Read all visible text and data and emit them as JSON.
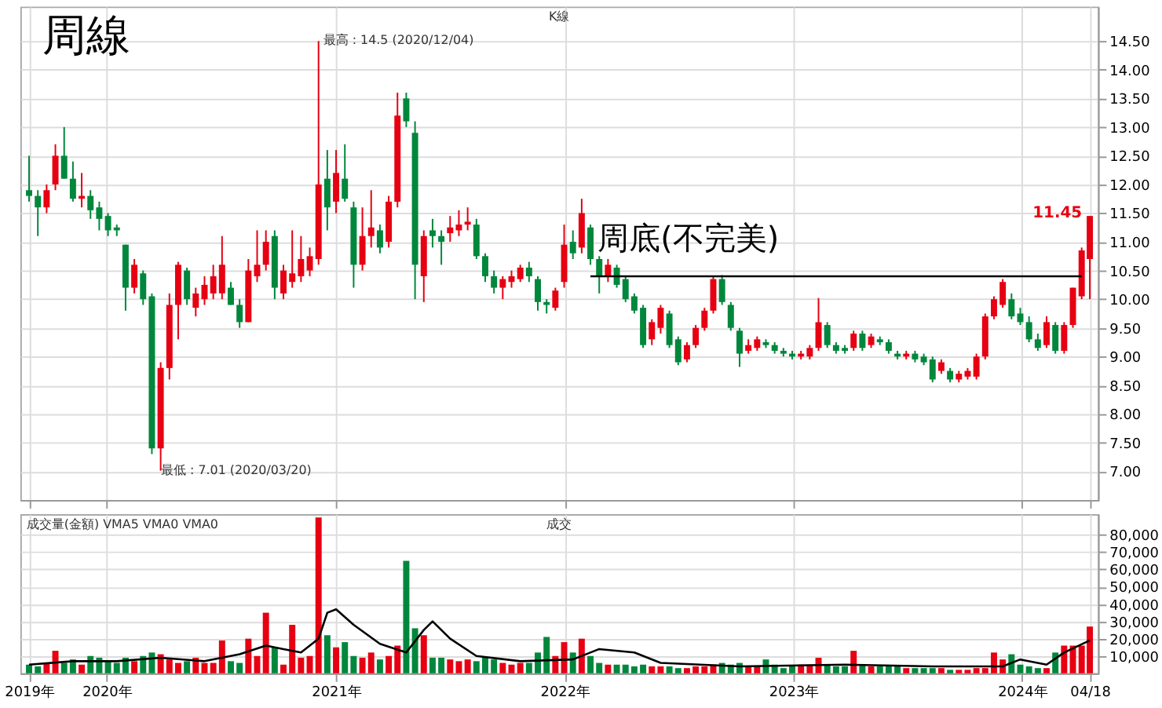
{
  "chart_data": [
    {
      "type": "candlestick",
      "title": "周線",
      "tick_labels": "y",
      "grid": true,
      "xlim": [
        "2019-08-16",
        "2024-05-01"
      ],
      "xticks": [
        {
          "value": "2019-08-30",
          "label": null
        },
        {
          "value": "2020-01-01",
          "label": null
        },
        {
          "value": "2021-01-01",
          "label": null
        },
        {
          "value": "2022-01-01",
          "label": null
        },
        {
          "value": "2023-01-01",
          "label": null
        },
        {
          "value": "2024-01-01",
          "label": null
        },
        {
          "value": "2024-04-18",
          "label": null
        }
      ],
      "ylim": [
        6.5,
        15.1
      ],
      "yticks": [
        {
          "value": 7,
          "label": "7.00"
        },
        {
          "value": 7.5,
          "label": "7.50"
        },
        {
          "value": 8,
          "label": "8.00"
        },
        {
          "value": 8.5,
          "label": "8.50"
        },
        {
          "value": 9,
          "label": "9.00"
        },
        {
          "value": 9.5,
          "label": "9.50"
        },
        {
          "value": 10,
          "label": "10.00"
        },
        {
          "value": 10.5,
          "label": "10.50"
        },
        {
          "value": 11,
          "label": "11.00"
        },
        {
          "value": 11.5,
          "label": "11.50"
        },
        {
          "value": 12,
          "label": "12.00"
        },
        {
          "value": 12.5,
          "label": "12.50"
        },
        {
          "value": 13,
          "label": "13.00"
        },
        {
          "value": 13.5,
          "label": "13.50"
        },
        {
          "value": 14,
          "label": "14.00"
        },
        {
          "value": 14.5,
          "label": "14.50"
        }
      ],
      "x": [
        "2019-08-30",
        "2019-09-13",
        "2019-09-27",
        "2019-10-11",
        "2019-10-25",
        "2019-11-08",
        "2019-11-22",
        "2019-12-06",
        "2019-12-20",
        "2020-01-03",
        "2020-01-17",
        "2020-01-31",
        "2020-02-14",
        "2020-02-28",
        "2020-03-13",
        "2020-03-27",
        "2020-04-10",
        "2020-04-24",
        "2020-05-08",
        "2020-05-22",
        "2020-06-05",
        "2020-06-19",
        "2020-07-03",
        "2020-07-17",
        "2020-07-31",
        "2020-08-14",
        "2020-08-28",
        "2020-09-11",
        "2020-09-25",
        "2020-10-09",
        "2020-10-23",
        "2020-11-06",
        "2020-11-20",
        "2020-12-04",
        "2020-12-18",
        "2021-01-01",
        "2021-01-15",
        "2021-01-29",
        "2021-02-12",
        "2021-02-26",
        "2021-03-12",
        "2021-03-26",
        "2021-04-09",
        "2021-04-23",
        "2021-05-07",
        "2021-05-21",
        "2021-06-04",
        "2021-06-18",
        "2021-07-02",
        "2021-07-16",
        "2021-07-30",
        "2021-08-13",
        "2021-08-27",
        "2021-09-10",
        "2021-09-24",
        "2021-10-08",
        "2021-10-22",
        "2021-11-05",
        "2021-11-19",
        "2021-12-03",
        "2021-12-17",
        "2021-12-31",
        "2022-01-14",
        "2022-01-28",
        "2022-02-11",
        "2022-02-25",
        "2022-03-11",
        "2022-03-25",
        "2022-04-08",
        "2022-04-22",
        "2022-05-06",
        "2022-05-20",
        "2022-06-03",
        "2022-06-17",
        "2022-07-01",
        "2022-07-15",
        "2022-07-29",
        "2022-08-12",
        "2022-08-26",
        "2022-09-09",
        "2022-09-23",
        "2022-10-07",
        "2022-10-21",
        "2022-11-04",
        "2022-11-18",
        "2022-12-02",
        "2022-12-16",
        "2022-12-30",
        "2023-01-13",
        "2023-01-27",
        "2023-02-10",
        "2023-02-24",
        "2023-03-10",
        "2023-03-24",
        "2023-04-07",
        "2023-04-21",
        "2023-05-05",
        "2023-05-19",
        "2023-06-02",
        "2023-06-16",
        "2023-06-30",
        "2023-07-14",
        "2023-07-28",
        "2023-08-11",
        "2023-08-25",
        "2023-09-08",
        "2023-09-22",
        "2023-10-06",
        "2023-10-20",
        "2023-11-03",
        "2023-11-17",
        "2023-12-01",
        "2023-12-15",
        "2023-12-29",
        "2024-01-12",
        "2024-01-26",
        "2024-02-09",
        "2024-02-23",
        "2024-03-08",
        "2024-03-22",
        "2024-04-05",
        "2024-04-18"
      ],
      "ohlc": [
        [
          11.9,
          12.5,
          11.7,
          11.8
        ],
        [
          11.8,
          11.9,
          11.1,
          11.6
        ],
        [
          11.6,
          12.0,
          11.5,
          11.9
        ],
        [
          12.0,
          12.7,
          11.9,
          12.5
        ],
        [
          12.5,
          13.0,
          12.1,
          12.1
        ],
        [
          12.1,
          12.4,
          11.7,
          11.75
        ],
        [
          11.75,
          12.2,
          11.6,
          11.8
        ],
        [
          11.8,
          11.9,
          11.4,
          11.55
        ],
        [
          11.6,
          11.7,
          11.2,
          11.4
        ],
        [
          11.45,
          11.5,
          11.1,
          11.2
        ],
        [
          11.25,
          11.3,
          11.1,
          11.2
        ],
        [
          10.95,
          10.95,
          9.8,
          10.2
        ],
        [
          10.2,
          10.7,
          10.1,
          10.6
        ],
        [
          10.45,
          10.5,
          9.9,
          10.0
        ],
        [
          10.05,
          10.1,
          7.3,
          7.4
        ],
        [
          7.4,
          8.9,
          7.01,
          8.8
        ],
        [
          8.8,
          10.1,
          8.6,
          9.9
        ],
        [
          9.9,
          10.65,
          9.3,
          10.6
        ],
        [
          10.5,
          10.55,
          9.9,
          10.0
        ],
        [
          9.85,
          10.2,
          9.7,
          10.1
        ],
        [
          10.0,
          10.4,
          9.9,
          10.25
        ],
        [
          10.1,
          10.6,
          10.0,
          10.4
        ],
        [
          10.1,
          11.1,
          10.0,
          10.6
        ],
        [
          10.2,
          10.3,
          9.9,
          9.9
        ],
        [
          9.9,
          10.0,
          9.5,
          9.6
        ],
        [
          9.6,
          10.7,
          9.6,
          10.5
        ],
        [
          10.4,
          11.2,
          10.3,
          10.6
        ],
        [
          10.6,
          11.2,
          10.5,
          11.0
        ],
        [
          11.1,
          11.2,
          10.0,
          10.2
        ],
        [
          10.1,
          10.6,
          10.0,
          10.5
        ],
        [
          10.3,
          11.2,
          10.2,
          10.45
        ],
        [
          10.4,
          11.1,
          10.3,
          10.7
        ],
        [
          10.5,
          10.9,
          10.4,
          10.75
        ],
        [
          10.7,
          14.5,
          10.6,
          12.0
        ],
        [
          12.1,
          12.6,
          11.2,
          11.6
        ],
        [
          11.7,
          12.6,
          11.5,
          12.2
        ],
        [
          12.1,
          12.7,
          11.7,
          11.75
        ],
        [
          11.6,
          11.7,
          10.2,
          10.6
        ],
        [
          10.6,
          11.6,
          10.5,
          11.1
        ],
        [
          11.1,
          11.9,
          10.9,
          11.25
        ],
        [
          11.2,
          11.3,
          10.8,
          10.9
        ],
        [
          11.0,
          11.8,
          10.9,
          11.7
        ],
        [
          11.7,
          13.6,
          11.6,
          13.2
        ],
        [
          13.5,
          13.6,
          13.0,
          13.1
        ],
        [
          12.9,
          13.1,
          10.0,
          10.6
        ],
        [
          10.4,
          11.2,
          9.95,
          11.1
        ],
        [
          11.2,
          11.4,
          10.9,
          11.1
        ],
        [
          11.1,
          11.2,
          10.6,
          11.0
        ],
        [
          11.15,
          11.45,
          11.0,
          11.25
        ],
        [
          11.2,
          11.55,
          11.1,
          11.3
        ],
        [
          11.3,
          11.6,
          11.2,
          11.35
        ],
        [
          11.3,
          11.4,
          10.7,
          10.75
        ],
        [
          10.75,
          10.8,
          10.3,
          10.4
        ],
        [
          10.4,
          10.5,
          10.1,
          10.2
        ],
        [
          10.2,
          10.4,
          10.0,
          10.35
        ],
        [
          10.3,
          10.5,
          10.2,
          10.4
        ],
        [
          10.35,
          10.6,
          10.3,
          10.55
        ],
        [
          10.55,
          10.65,
          10.3,
          10.4
        ],
        [
          10.35,
          10.4,
          9.8,
          9.95
        ],
        [
          9.95,
          10.0,
          9.75,
          9.9
        ],
        [
          9.85,
          10.2,
          9.8,
          10.15
        ],
        [
          10.3,
          11.3,
          10.2,
          10.95
        ],
        [
          11.0,
          11.2,
          10.7,
          10.8
        ],
        [
          10.9,
          11.75,
          10.8,
          11.5
        ],
        [
          11.25,
          11.3,
          10.6,
          10.7
        ],
        [
          10.7,
          10.75,
          10.1,
          10.4
        ],
        [
          10.4,
          10.7,
          10.3,
          10.6
        ],
        [
          10.55,
          10.6,
          10.2,
          10.25
        ],
        [
          10.35,
          10.4,
          9.95,
          10.0
        ],
        [
          10.05,
          10.1,
          9.75,
          9.8
        ],
        [
          9.85,
          9.9,
          9.15,
          9.2
        ],
        [
          9.3,
          9.65,
          9.2,
          9.6
        ],
        [
          9.5,
          9.9,
          9.4,
          9.85
        ],
        [
          9.75,
          9.8,
          9.15,
          9.2
        ],
        [
          9.3,
          9.35,
          8.85,
          8.9
        ],
        [
          8.95,
          9.25,
          8.9,
          9.2
        ],
        [
          9.2,
          9.55,
          9.15,
          9.5
        ],
        [
          9.5,
          9.85,
          9.45,
          9.8
        ],
        [
          9.8,
          10.4,
          9.75,
          10.35
        ],
        [
          10.35,
          10.42,
          9.9,
          9.95
        ],
        [
          9.9,
          9.95,
          9.45,
          9.5
        ],
        [
          9.45,
          9.5,
          8.82,
          9.05
        ],
        [
          9.1,
          9.3,
          9.05,
          9.2
        ],
        [
          9.15,
          9.35,
          9.1,
          9.3
        ],
        [
          9.25,
          9.3,
          9.15,
          9.2
        ],
        [
          9.2,
          9.25,
          9.05,
          9.1
        ],
        [
          9.1,
          9.15,
          9.0,
          9.05
        ],
        [
          9.05,
          9.1,
          8.95,
          9.0
        ],
        [
          9.0,
          9.1,
          8.95,
          9.05
        ],
        [
          9.0,
          9.2,
          8.95,
          9.15
        ],
        [
          9.15,
          10.02,
          9.1,
          9.6
        ],
        [
          9.55,
          9.6,
          9.15,
          9.2
        ],
        [
          9.2,
          9.25,
          9.05,
          9.1
        ],
        [
          9.15,
          9.2,
          9.05,
          9.1
        ],
        [
          9.15,
          9.45,
          9.1,
          9.4
        ],
        [
          9.4,
          9.45,
          9.1,
          9.15
        ],
        [
          9.2,
          9.4,
          9.15,
          9.35
        ],
        [
          9.3,
          9.35,
          9.2,
          9.25
        ],
        [
          9.25,
          9.3,
          9.05,
          9.1
        ],
        [
          9.05,
          9.1,
          8.95,
          9.0
        ],
        [
          9.0,
          9.1,
          8.95,
          9.05
        ],
        [
          9.05,
          9.1,
          8.9,
          8.95
        ],
        [
          9.0,
          9.05,
          8.85,
          8.9
        ],
        [
          8.95,
          9.0,
          8.55,
          8.6
        ],
        [
          8.75,
          8.95,
          8.7,
          8.9
        ],
        [
          8.75,
          8.8,
          8.55,
          8.6
        ],
        [
          8.6,
          8.75,
          8.55,
          8.7
        ],
        [
          8.65,
          8.8,
          8.6,
          8.75
        ],
        [
          8.65,
          9.05,
          8.6,
          9.0
        ],
        [
          9.0,
          9.75,
          8.95,
          9.7
        ],
        [
          9.7,
          10.05,
          9.65,
          10.0
        ],
        [
          9.9,
          10.35,
          9.85,
          10.3
        ],
        [
          10.0,
          10.1,
          9.65,
          9.7
        ],
        [
          9.75,
          9.85,
          9.55,
          9.6
        ],
        [
          9.6,
          9.7,
          9.25,
          9.3
        ],
        [
          9.3,
          9.4,
          9.1,
          9.15
        ],
        [
          9.2,
          9.7,
          9.15,
          9.6
        ],
        [
          9.55,
          9.6,
          9.05,
          9.1
        ],
        [
          9.1,
          9.6,
          9.05,
          9.55
        ],
        [
          9.55,
          10.2,
          9.5,
          10.2
        ],
        [
          10.05,
          10.9,
          10.0,
          10.85
        ],
        [
          10.7,
          11.45,
          10.0,
          11.45
        ]
      ],
      "colors": [
        "#00873c",
        "#00873c",
        "#e60012",
        "#e60012",
        "#00873c",
        "#00873c",
        "#e60012",
        "#00873c",
        "#00873c",
        "#00873c",
        "#00873c",
        "#00873c",
        "#e60012",
        "#00873c",
        "#00873c",
        "#e60012",
        "#e60012",
        "#e60012",
        "#00873c",
        "#e60012",
        "#e60012",
        "#e60012",
        "#e60012",
        "#00873c",
        "#00873c",
        "#e60012",
        "#e60012",
        "#e60012",
        "#00873c",
        "#e60012",
        "#e60012",
        "#e60012",
        "#e60012",
        "#e60012",
        "#00873c",
        "#e60012",
        "#00873c",
        "#00873c",
        "#e60012",
        "#e60012",
        "#00873c",
        "#e60012",
        "#e60012",
        "#00873c",
        "#00873c",
        "#e60012",
        "#00873c",
        "#00873c",
        "#e60012",
        "#e60012",
        "#e60012",
        "#00873c",
        "#00873c",
        "#00873c",
        "#e60012",
        "#e60012",
        "#e60012",
        "#00873c",
        "#00873c",
        "#00873c",
        "#e60012",
        "#e60012",
        "#00873c",
        "#e60012",
        "#00873c",
        "#00873c",
        "#e60012",
        "#00873c",
        "#00873c",
        "#00873c",
        "#00873c",
        "#e60012",
        "#e60012",
        "#00873c",
        "#00873c",
        "#e60012",
        "#e60012",
        "#e60012",
        "#e60012",
        "#00873c",
        "#00873c",
        "#00873c",
        "#e60012",
        "#e60012",
        "#00873c",
        "#00873c",
        "#00873c",
        "#00873c",
        "#e60012",
        "#e60012",
        "#e60012",
        "#00873c",
        "#00873c",
        "#00873c",
        "#e60012",
        "#00873c",
        "#e60012",
        "#00873c",
        "#00873c",
        "#00873c",
        "#e60012",
        "#00873c",
        "#00873c",
        "#00873c",
        "#e60012",
        "#00873c",
        "#e60012",
        "#e60012",
        "#e60012",
        "#e60012",
        "#e60012",
        "#e60012",
        "#00873c",
        "#00873c",
        "#00873c",
        "#00873c",
        "#e60012",
        "#00873c",
        "#e60012",
        "#e60012",
        "#e60012",
        "#e60012"
      ],
      "series": [
        {
          "type": "line",
          "color": "#000000",
          "x": [
            "2022-02-11",
            "2024-04-05"
          ],
          "values": [
            10.4,
            10.4
          ]
        }
      ],
      "annotations": [
        "K線",
        "周底(不完美)",
        {
          "text": "最高 : 14.5 (2020/12/04)",
          "x": "2020-12-04",
          "y": 14.5
        },
        {
          "text": "最低 : 7.01 (2020/03/20)",
          "x": "2020-03-20",
          "y": 7.01
        },
        {
          "text": "11.45",
          "x": "2024-04-18",
          "y": 11.45
        }
      ]
    },
    {
      "type": "bar",
      "grid": true,
      "xlim": [
        "2019-08-16",
        "2024-05-01"
      ],
      "xticks": [
        {
          "value": "2019-08-30",
          "label": "2019年"
        },
        {
          "value": "2020-01-01",
          "label": "2020年"
        },
        {
          "value": "2021-01-01",
          "label": "2021年"
        },
        {
          "value": "2022-01-01",
          "label": "2022年"
        },
        {
          "value": "2023-01-01",
          "label": "2023年"
        },
        {
          "value": "2024-01-01",
          "label": "2024年"
        },
        {
          "value": "2024-04-18",
          "label": "04/18"
        }
      ],
      "ylim": [
        0,
        92000
      ],
      "yticks": [
        {
          "value": 10000,
          "label": "10,000"
        },
        {
          "value": 20000,
          "label": "20,000"
        },
        {
          "value": 30000,
          "label": "30,000"
        },
        {
          "value": 40000,
          "label": "40,000"
        },
        {
          "value": 50000,
          "label": "50,000"
        },
        {
          "value": 60000,
          "label": "60,000"
        },
        {
          "value": 70000,
          "label": "70,000"
        },
        {
          "value": 80000,
          "label": "80,000"
        }
      ],
      "x": [
        "2019-08-30",
        "2019-09-13",
        "2019-09-27",
        "2019-10-11",
        "2019-10-25",
        "2019-11-08",
        "2019-11-22",
        "2019-12-06",
        "2019-12-20",
        "2020-01-03",
        "2020-01-17",
        "2020-01-31",
        "2020-02-14",
        "2020-02-28",
        "2020-03-13",
        "2020-03-27",
        "2020-04-10",
        "2020-04-24",
        "2020-05-08",
        "2020-05-22",
        "2020-06-05",
        "2020-06-19",
        "2020-07-03",
        "2020-07-17",
        "2020-07-31",
        "2020-08-14",
        "2020-08-28",
        "2020-09-11",
        "2020-09-25",
        "2020-10-09",
        "2020-10-23",
        "2020-11-06",
        "2020-11-20",
        "2020-12-04",
        "2020-12-18",
        "2021-01-01",
        "2021-01-15",
        "2021-01-29",
        "2021-02-12",
        "2021-02-26",
        "2021-03-12",
        "2021-03-26",
        "2021-04-09",
        "2021-04-23",
        "2021-05-07",
        "2021-05-21",
        "2021-06-04",
        "2021-06-18",
        "2021-07-02",
        "2021-07-16",
        "2021-07-30",
        "2021-08-13",
        "2021-08-27",
        "2021-09-10",
        "2021-09-24",
        "2021-10-08",
        "2021-10-22",
        "2021-11-05",
        "2021-11-19",
        "2021-12-03",
        "2021-12-17",
        "2021-12-31",
        "2022-01-14",
        "2022-01-28",
        "2022-02-11",
        "2022-02-25",
        "2022-03-11",
        "2022-03-25",
        "2022-04-08",
        "2022-04-22",
        "2022-05-06",
        "2022-05-20",
        "2022-06-03",
        "2022-06-17",
        "2022-07-01",
        "2022-07-15",
        "2022-07-29",
        "2022-08-12",
        "2022-08-26",
        "2022-09-09",
        "2022-09-23",
        "2022-10-07",
        "2022-10-21",
        "2022-11-04",
        "2022-11-18",
        "2022-12-02",
        "2022-12-16",
        "2022-12-30",
        "2023-01-13",
        "2023-01-27",
        "2023-02-10",
        "2023-02-24",
        "2023-03-10",
        "2023-03-24",
        "2023-04-07",
        "2023-04-21",
        "2023-05-05",
        "2023-05-19",
        "2023-06-02",
        "2023-06-16",
        "2023-06-30",
        "2023-07-14",
        "2023-07-28",
        "2023-08-11",
        "2023-08-25",
        "2023-09-08",
        "2023-09-22",
        "2023-10-06",
        "2023-10-20",
        "2023-11-03",
        "2023-11-17",
        "2023-12-01",
        "2023-12-15",
        "2023-12-29",
        "2024-01-12",
        "2024-01-26",
        "2024-02-09",
        "2024-02-23",
        "2024-03-08",
        "2024-03-22",
        "2024-04-05",
        "2024-04-18"
      ],
      "values": [
        5000,
        4000,
        6000,
        13000,
        6000,
        8000,
        5000,
        10000,
        9000,
        7000,
        6000,
        9000,
        7000,
        10000,
        12000,
        11000,
        8000,
        6000,
        7000,
        9000,
        6000,
        6000,
        19000,
        7000,
        6000,
        20000,
        10000,
        35000,
        15000,
        5000,
        28000,
        9000,
        10000,
        90000,
        22000,
        15000,
        18000,
        10000,
        9000,
        12000,
        8000,
        10000,
        16000,
        65000,
        26000,
        22000,
        9000,
        9000,
        8000,
        7000,
        8000,
        7000,
        9000,
        8000,
        6000,
        5000,
        6000,
        6000,
        12000,
        21000,
        10000,
        18000,
        12000,
        20000,
        10000,
        6000,
        5000,
        5000,
        5000,
        4000,
        5000,
        4000,
        4000,
        4000,
        3000,
        3000,
        4000,
        4000,
        5000,
        6000,
        5000,
        6000,
        4000,
        4000,
        8000,
        5000,
        3000,
        4000,
        5000,
        5000,
        9000,
        5000,
        4000,
        4000,
        13000,
        5000,
        4000,
        4000,
        4000,
        4000,
        3000,
        3000,
        3000,
        3000,
        3000,
        2000,
        2000,
        2000,
        3000,
        3000,
        12000,
        8000,
        11000,
        5000,
        4000,
        3000,
        3000,
        12000,
        16000,
        16000,
        16000,
        27000
      ],
      "colors": [
        "#00873c",
        "#00873c",
        "#e60012",
        "#e60012",
        "#00873c",
        "#00873c",
        "#e60012",
        "#00873c",
        "#00873c",
        "#00873c",
        "#00873c",
        "#00873c",
        "#e60012",
        "#00873c",
        "#00873c",
        "#e60012",
        "#e60012",
        "#e60012",
        "#00873c",
        "#e60012",
        "#e60012",
        "#e60012",
        "#e60012",
        "#00873c",
        "#00873c",
        "#e60012",
        "#e60012",
        "#e60012",
        "#00873c",
        "#e60012",
        "#e60012",
        "#e60012",
        "#e60012",
        "#e60012",
        "#00873c",
        "#e60012",
        "#00873c",
        "#00873c",
        "#e60012",
        "#e60012",
        "#00873c",
        "#e60012",
        "#e60012",
        "#00873c",
        "#00873c",
        "#e60012",
        "#00873c",
        "#00873c",
        "#e60012",
        "#e60012",
        "#e60012",
        "#00873c",
        "#00873c",
        "#00873c",
        "#e60012",
        "#e60012",
        "#e60012",
        "#00873c",
        "#00873c",
        "#00873c",
        "#e60012",
        "#e60012",
        "#00873c",
        "#e60012",
        "#00873c",
        "#00873c",
        "#e60012",
        "#00873c",
        "#00873c",
        "#00873c",
        "#00873c",
        "#e60012",
        "#e60012",
        "#00873c",
        "#00873c",
        "#e60012",
        "#e60012",
        "#e60012",
        "#e60012",
        "#00873c",
        "#00873c",
        "#00873c",
        "#e60012",
        "#e60012",
        "#00873c",
        "#00873c",
        "#00873c",
        "#00873c",
        "#e60012",
        "#e60012",
        "#e60012",
        "#00873c",
        "#00873c",
        "#00873c",
        "#e60012",
        "#00873c",
        "#e60012",
        "#00873c",
        "#00873c",
        "#00873c",
        "#e60012",
        "#00873c",
        "#00873c",
        "#00873c",
        "#e60012",
        "#00873c",
        "#e60012",
        "#e60012",
        "#e60012",
        "#e60012",
        "#e60012",
        "#e60012",
        "#00873c",
        "#00873c",
        "#00873c",
        "#00873c",
        "#e60012",
        "#00873c",
        "#e60012",
        "#e60012",
        "#e60012",
        "#e60012"
      ],
      "series": [
        {
          "type": "line",
          "color": "#000000",
          "x": [
            "2019-08-30",
            "2019-11-08",
            "2020-01-17",
            "2020-03-27",
            "2020-06-05",
            "2020-07-31",
            "2020-09-11",
            "2020-10-09",
            "2020-11-06",
            "2020-12-04",
            "2020-12-18",
            "2021-01-01",
            "2021-01-29",
            "2021-03-12",
            "2021-04-23",
            "2021-05-21",
            "2021-06-04",
            "2021-07-02",
            "2021-08-13",
            "2021-10-22",
            "2022-01-14",
            "2022-02-25",
            "2022-04-22",
            "2022-06-03",
            "2022-10-07",
            "2023-03-24",
            "2023-08-11",
            "2023-12-01",
            "2023-12-29",
            "2024-02-09",
            "2024-03-08",
            "2024-04-18"
          ],
          "values": [
            5000,
            7000,
            7000,
            9000,
            7000,
            11000,
            16000,
            14000,
            12000,
            20000,
            35000,
            37000,
            28000,
            17000,
            12000,
            25000,
            30000,
            20000,
            10000,
            7000,
            8000,
            14000,
            12000,
            6000,
            4000,
            5000,
            4000,
            4000,
            8000,
            5000,
            12000,
            19000
          ]
        }
      ],
      "annotations": [
        "成交量(金額) VMA5 VMA0 VMA0",
        "成交"
      ]
    }
  ]
}
